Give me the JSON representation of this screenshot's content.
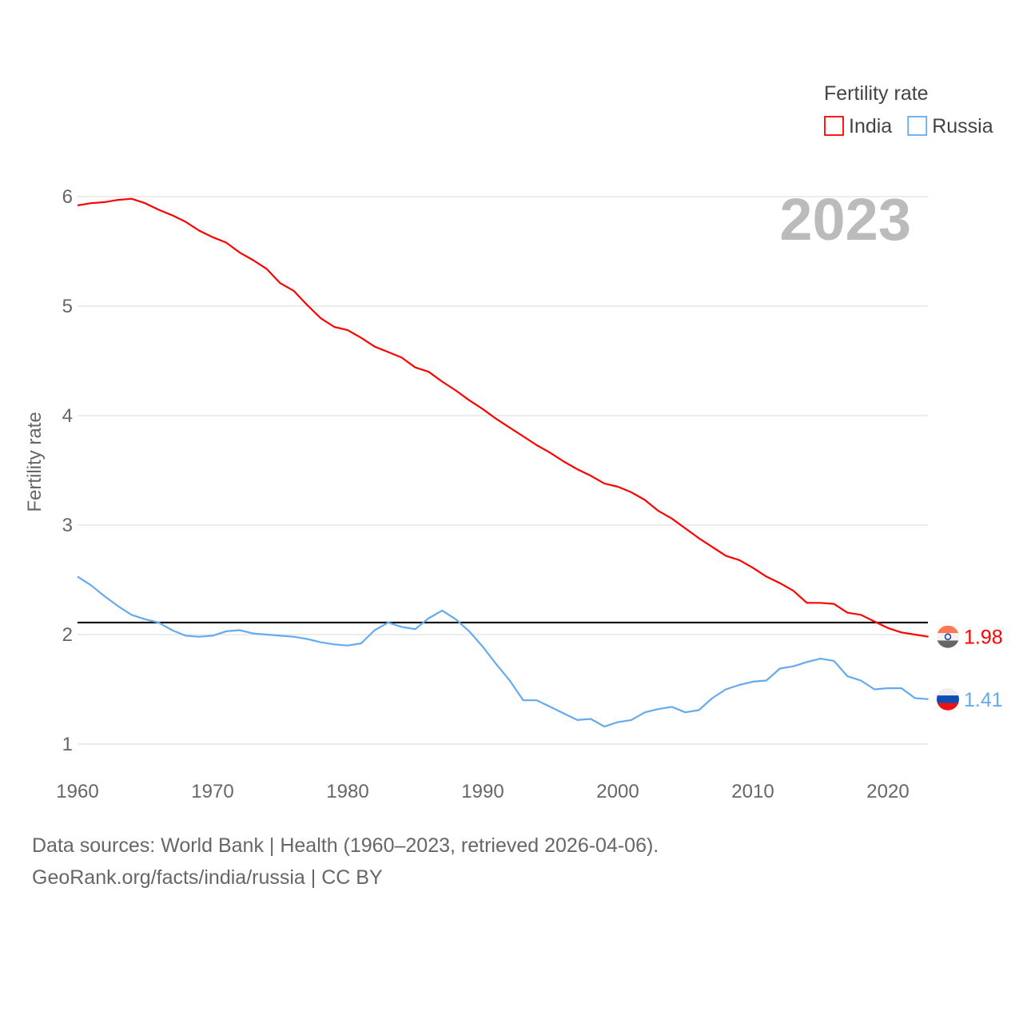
{
  "chart_data": {
    "type": "line",
    "title": "",
    "xlabel": "",
    "ylabel": "Fertility rate",
    "xlim": [
      1960,
      2023
    ],
    "ylim": [
      1,
      6
    ],
    "grid": true,
    "x_ticks": [
      "1960",
      "1970",
      "1980",
      "1990",
      "2000",
      "2010",
      "2020"
    ],
    "y_ticks": [
      "1",
      "2",
      "3",
      "4",
      "5",
      "6"
    ],
    "legend_title": "Fertility rate",
    "legend_placement": "top-right",
    "year_label": "2023",
    "reference_line": 2.11,
    "x": [
      1960,
      1961,
      1962,
      1963,
      1964,
      1965,
      1966,
      1967,
      1968,
      1969,
      1970,
      1971,
      1972,
      1973,
      1974,
      1975,
      1976,
      1977,
      1978,
      1979,
      1980,
      1981,
      1982,
      1983,
      1984,
      1985,
      1986,
      1987,
      1988,
      1989,
      1990,
      1991,
      1992,
      1993,
      1994,
      1995,
      1996,
      1997,
      1998,
      1999,
      2000,
      2001,
      2002,
      2003,
      2004,
      2005,
      2006,
      2007,
      2008,
      2009,
      2010,
      2011,
      2012,
      2013,
      2014,
      2015,
      2016,
      2017,
      2018,
      2019,
      2020,
      2021,
      2022,
      2023
    ],
    "series": [
      {
        "name": "India",
        "color": "#ff0000",
        "end_label": "1.98",
        "values": [
          5.92,
          5.94,
          5.95,
          5.97,
          5.98,
          5.94,
          5.88,
          5.83,
          5.77,
          5.69,
          5.63,
          5.58,
          5.49,
          5.42,
          5.34,
          5.21,
          5.14,
          5.01,
          4.89,
          4.81,
          4.78,
          4.71,
          4.63,
          4.58,
          4.53,
          4.44,
          4.4,
          4.31,
          4.23,
          4.14,
          4.06,
          3.97,
          3.89,
          3.81,
          3.73,
          3.66,
          3.58,
          3.51,
          3.45,
          3.38,
          3.35,
          3.3,
          3.23,
          3.13,
          3.06,
          2.97,
          2.88,
          2.8,
          2.72,
          2.68,
          2.61,
          2.53,
          2.47,
          2.4,
          2.29,
          2.29,
          2.28,
          2.2,
          2.18,
          2.12,
          2.06,
          2.02,
          2.0,
          1.98
        ]
      },
      {
        "name": "Russia",
        "color": "#66aaee",
        "end_label": "1.41",
        "values": [
          2.53,
          2.45,
          2.35,
          2.26,
          2.18,
          2.14,
          2.11,
          2.04,
          1.99,
          1.98,
          1.99,
          2.03,
          2.04,
          2.01,
          2.0,
          1.99,
          1.98,
          1.96,
          1.93,
          1.91,
          1.9,
          1.92,
          2.04,
          2.11,
          2.07,
          2.05,
          2.15,
          2.22,
          2.14,
          2.03,
          1.89,
          1.73,
          1.58,
          1.4,
          1.4,
          1.34,
          1.28,
          1.22,
          1.23,
          1.16,
          1.2,
          1.22,
          1.29,
          1.32,
          1.34,
          1.29,
          1.31,
          1.42,
          1.5,
          1.54,
          1.57,
          1.58,
          1.69,
          1.71,
          1.75,
          1.78,
          1.76,
          1.62,
          1.58,
          1.5,
          1.51,
          1.51,
          1.42,
          1.41
        ]
      }
    ]
  },
  "footer": {
    "line1": "Data sources: World Bank | Health (1960–2023, retrieved 2026-04-06).",
    "line2": "GeoRank.org/facts/india/russia | CC BY"
  }
}
